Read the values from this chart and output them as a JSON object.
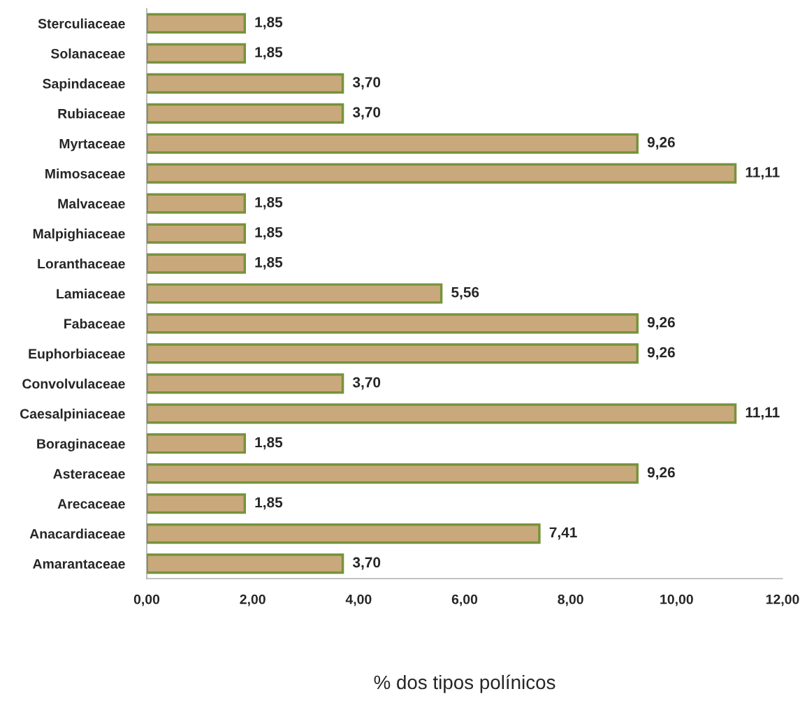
{
  "chart_data": {
    "type": "bar",
    "orientation": "horizontal",
    "xlabel": "% dos tipos polínicos",
    "categories": [
      "Sterculiaceae",
      "Solanaceae",
      "Sapindaceae",
      "Rubiaceae",
      "Myrtaceae",
      "Mimosaceae",
      "Malvaceae",
      "Malpighiaceae",
      "Loranthaceae",
      "Lamiaceae",
      "Fabaceae",
      "Euphorbiaceae",
      "Convolvulaceae",
      "Caesalpiniaceae",
      "Boraginaceae",
      "Asteraceae",
      "Arecaceae",
      "Anacardiaceae",
      "Amarantaceae"
    ],
    "values": [
      1.85,
      1.85,
      3.7,
      3.7,
      9.26,
      11.11,
      1.85,
      1.85,
      1.85,
      5.56,
      9.26,
      9.26,
      3.7,
      11.11,
      1.85,
      9.26,
      1.85,
      7.41,
      3.7
    ],
    "value_labels": [
      "1,85",
      "1,85",
      "3,70",
      "3,70",
      "9,26",
      "11,11",
      "1,85",
      "1,85",
      "1,85",
      "5,56",
      "9,26",
      "9,26",
      "3,70",
      "11,11",
      "1,85",
      "9,26",
      "1,85",
      "7,41",
      "3,70"
    ],
    "color": "#c9a97c",
    "xlim": [
      0,
      12
    ],
    "xticks": [
      {
        "value": 0,
        "label": "0,00"
      },
      {
        "value": 2,
        "label": "2,00"
      },
      {
        "value": 4,
        "label": "4,00"
      },
      {
        "value": 6,
        "label": "6,00"
      },
      {
        "value": 8,
        "label": "8,00"
      },
      {
        "value": 10,
        "label": "10,00"
      },
      {
        "value": 12,
        "label": "12,00"
      }
    ],
    "grid": false,
    "legend": false
  }
}
